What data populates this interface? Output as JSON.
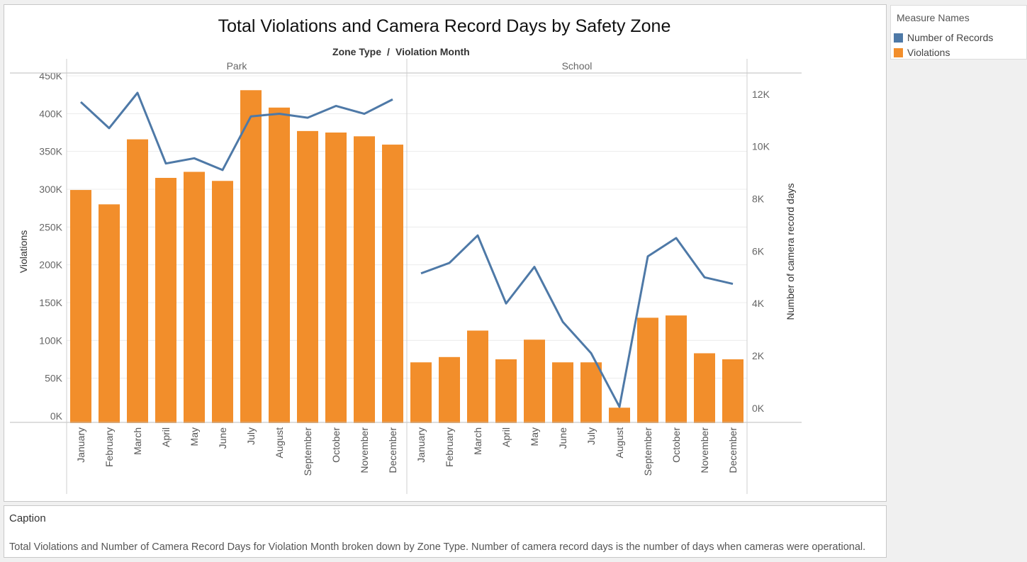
{
  "legend": {
    "title": "Measure Names",
    "items": [
      {
        "label": "Number of Records",
        "color": "#4e79a7"
      },
      {
        "label": "Violations",
        "color": "#f28e2b"
      }
    ]
  },
  "caption": {
    "title": "Caption",
    "text": "Total Violations and Number of Camera Record Days for Violation Month broken down by Zone Type.  Number of camera record days is the number of days when cameras were operational."
  },
  "chart_data": {
    "type": "bar",
    "title": "Total Violations and  Camera Record Days by Safety Zone",
    "header": {
      "zone_label": "Zone Type",
      "separator": "/",
      "month_label": "Violation Month"
    },
    "ylabel": "Violations",
    "y2label": "Number of camera record days",
    "ylim": [
      0,
      450000
    ],
    "y2lim": [
      -300,
      12700
    ],
    "yticks": [
      {
        "v": 0,
        "label": "0K"
      },
      {
        "v": 50000,
        "label": "50K"
      },
      {
        "v": 100000,
        "label": "100K"
      },
      {
        "v": 150000,
        "label": "150K"
      },
      {
        "v": 200000,
        "label": "200K"
      },
      {
        "v": 250000,
        "label": "250K"
      },
      {
        "v": 300000,
        "label": "300K"
      },
      {
        "v": 350000,
        "label": "350K"
      },
      {
        "v": 400000,
        "label": "400K"
      },
      {
        "v": 450000,
        "label": "450K"
      }
    ],
    "y2ticks": [
      {
        "v": 0,
        "label": "0K"
      },
      {
        "v": 2000,
        "label": "2K"
      },
      {
        "v": 4000,
        "label": "4K"
      },
      {
        "v": 6000,
        "label": "6K"
      },
      {
        "v": 8000,
        "label": "8K"
      },
      {
        "v": 10000,
        "label": "10K"
      },
      {
        "v": 12000,
        "label": "12K"
      }
    ],
    "grid": true,
    "legend_position": "right",
    "panels": [
      {
        "name": "Park",
        "categories": [
          "January",
          "February",
          "March",
          "April",
          "May",
          "June",
          "July",
          "August",
          "September",
          "October",
          "November",
          "December"
        ],
        "series": [
          {
            "name": "Violations",
            "type": "bar",
            "color": "#f28e2b",
            "values": [
              299000,
              280000,
              366000,
              315000,
              323000,
              311000,
              431000,
              408000,
              377000,
              375000,
              370000,
              359000
            ]
          },
          {
            "name": "Number of Records",
            "type": "line",
            "color": "#4e79a7",
            "values": [
              11700,
              10700,
              12050,
              9350,
              9550,
              9100,
              11150,
              11250,
              11100,
              11550,
              11250,
              11800
            ]
          }
        ]
      },
      {
        "name": "School",
        "categories": [
          "January",
          "February",
          "March",
          "April",
          "May",
          "June",
          "July",
          "August",
          "September",
          "October",
          "November",
          "December"
        ],
        "series": [
          {
            "name": "Violations",
            "type": "bar",
            "color": "#f28e2b",
            "values": [
              71000,
              78000,
              113000,
              75000,
              101000,
              71000,
              71000,
              11000,
              130000,
              133000,
              83000,
              75000
            ]
          },
          {
            "name": "Number of Records",
            "type": "line",
            "color": "#4e79a7",
            "values": [
              5150,
              5550,
              6600,
              4000,
              5400,
              3300,
              2100,
              50,
              5800,
              6500,
              5000,
              4750
            ]
          }
        ]
      }
    ]
  }
}
